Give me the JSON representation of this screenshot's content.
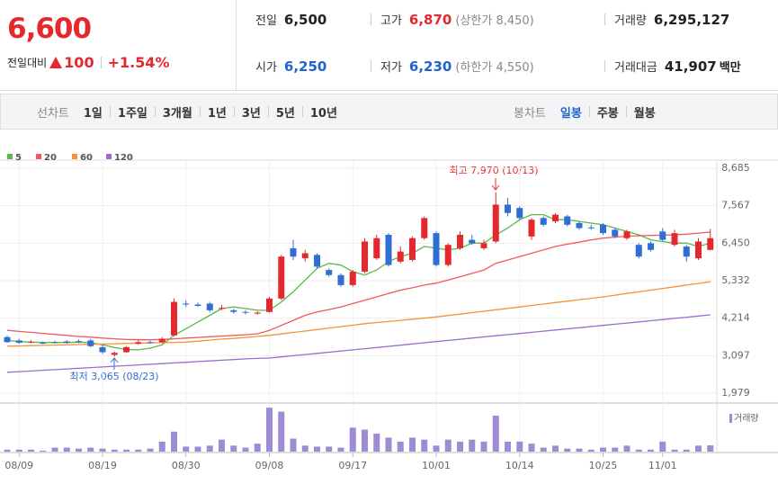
{
  "quote": {
    "price": "6,600",
    "change_label": "전일대비",
    "change": "100",
    "change_pct": "+1.54%"
  },
  "summary": [
    [
      {
        "label": "전일",
        "value": "6,500"
      },
      {
        "label": "고가",
        "value": "6,870",
        "note": "(상한가 8,450)",
        "tone": "red"
      },
      {
        "label": "거래량",
        "value": "6,295,127"
      }
    ],
    [
      {
        "label": "시가",
        "value": "6,250",
        "tone": "blue"
      },
      {
        "label": "저가",
        "value": "6,230",
        "note": "(하한가 4,550)",
        "tone": "blue"
      },
      {
        "label": "거래대금",
        "value": "41,907",
        "unit": "백만"
      }
    ]
  ],
  "tabs": [
    {
      "label": "선차트",
      "items": [
        "1일",
        "1주일",
        "3개월",
        "1년",
        "3년",
        "5년",
        "10년"
      ]
    },
    {
      "label": "봉차트",
      "items": [
        "일봉",
        "주봉",
        "월봉"
      ],
      "active": 0
    }
  ],
  "chart_data": {
    "type": "candlestick",
    "categories": [
      null,
      "08/09",
      null,
      null,
      null,
      null,
      null,
      null,
      "08/19",
      null,
      null,
      null,
      null,
      null,
      null,
      "08/30",
      null,
      null,
      null,
      null,
      null,
      null,
      "09/08",
      null,
      null,
      null,
      null,
      null,
      null,
      "09/17",
      null,
      null,
      null,
      null,
      null,
      null,
      "10/01",
      null,
      null,
      null,
      null,
      null,
      null,
      "10/14",
      null,
      null,
      null,
      null,
      null,
      null,
      "10/25",
      null,
      null,
      null,
      null,
      "11/01",
      null,
      null,
      null,
      null
    ],
    "open": [
      3650,
      3550,
      3500,
      3480,
      3500,
      3520,
      3530,
      3550,
      3350,
      3120,
      3200,
      3450,
      3500,
      3500,
      3700,
      4650,
      4620,
      4650,
      4500,
      4450,
      4400,
      4350,
      4400,
      4800,
      6300,
      6000,
      6100,
      5650,
      5500,
      5200,
      5600,
      6000,
      6700,
      5900,
      5950,
      6600,
      6750,
      5800,
      6300,
      6550,
      6300,
      6500,
      7600,
      7500,
      6650,
      7200,
      7100,
      7250,
      7050,
      6920,
      7000,
      6850,
      6600,
      6400,
      6450,
      6800,
      6400,
      6350,
      6000,
      6250
    ],
    "high": [
      3700,
      3600,
      3560,
      3520,
      3540,
      3560,
      3580,
      3600,
      3400,
      3220,
      3380,
      3550,
      3540,
      3650,
      4800,
      4750,
      4680,
      4700,
      4600,
      4500,
      4450,
      4420,
      4850,
      6100,
      6550,
      6250,
      6150,
      5700,
      5550,
      5650,
      6600,
      6700,
      6750,
      6350,
      6650,
      7250,
      6800,
      6450,
      6800,
      6700,
      6550,
      7970,
      7800,
      7550,
      7200,
      7250,
      7350,
      7300,
      7100,
      7000,
      7050,
      6900,
      6850,
      6450,
      6500,
      6900,
      6850,
      6400,
      6600,
      6870
    ],
    "low": [
      3480,
      3450,
      3470,
      3440,
      3460,
      3450,
      3470,
      3350,
      3150,
      3065,
      3180,
      3420,
      3450,
      3480,
      3680,
      4550,
      4550,
      4400,
      4450,
      4350,
      4330,
      4320,
      4380,
      4750,
      5950,
      5900,
      5700,
      5450,
      5150,
      5150,
      5550,
      5950,
      5750,
      5850,
      5900,
      6550,
      5750,
      5750,
      6250,
      6400,
      6250,
      6450,
      7250,
      7150,
      6550,
      6950,
      7050,
      6950,
      6850,
      6850,
      6700,
      6600,
      6550,
      6000,
      6200,
      6500,
      6350,
      5900,
      5950,
      6230
    ],
    "close": [
      3500,
      3480,
      3510,
      3470,
      3490,
      3480,
      3500,
      3380,
      3200,
      3180,
      3350,
      3500,
      3480,
      3600,
      4700,
      4620,
      4580,
      4450,
      4520,
      4400,
      4380,
      4380,
      4800,
      6050,
      6050,
      6150,
      5750,
      5500,
      5200,
      5600,
      6500,
      6600,
      5800,
      6200,
      6600,
      7200,
      5800,
      6400,
      6700,
      6450,
      6450,
      7600,
      7350,
      7200,
      7150,
      7000,
      7300,
      7000,
      6900,
      6900,
      6750,
      6650,
      6800,
      6050,
      6250,
      6550,
      6750,
      6050,
      6500,
      6600
    ],
    "up_color": "#e4282e",
    "down_color": "#2f6fd3",
    "moving_averages": [
      {
        "name": "5",
        "color": "#5cb84a",
        "values": [
          3550,
          3520,
          3500,
          3490,
          3490,
          3490,
          3500,
          3480,
          3420,
          3340,
          3280,
          3270,
          3320,
          3420,
          3700,
          3900,
          4100,
          4300,
          4500,
          4550,
          4500,
          4450,
          4450,
          4700,
          5000,
          5350,
          5700,
          5850,
          5800,
          5600,
          5500,
          5650,
          5900,
          6050,
          6150,
          6350,
          6300,
          6250,
          6300,
          6450,
          6450,
          6700,
          6900,
          7150,
          7300,
          7300,
          7150,
          7150,
          7100,
          7050,
          7000,
          6900,
          6800,
          6700,
          6550,
          6500,
          6450,
          6450,
          6350,
          6450
        ]
      },
      {
        "name": "20",
        "color": "#f05a5a",
        "values": [
          3850,
          3820,
          3790,
          3760,
          3730,
          3700,
          3670,
          3650,
          3620,
          3600,
          3580,
          3570,
          3570,
          3580,
          3600,
          3620,
          3640,
          3660,
          3680,
          3700,
          3720,
          3750,
          3850,
          4000,
          4150,
          4300,
          4400,
          4470,
          4550,
          4650,
          4750,
          4850,
          4950,
          5050,
          5120,
          5200,
          5260,
          5350,
          5450,
          5550,
          5650,
          5850,
          5950,
          6050,
          6150,
          6250,
          6350,
          6420,
          6480,
          6550,
          6600,
          6630,
          6660,
          6670,
          6680,
          6690,
          6700,
          6720,
          6750,
          6780
        ]
      },
      {
        "name": "60",
        "color": "#f39239",
        "values": [
          3380,
          3388,
          3396,
          3404,
          3412,
          3420,
          3428,
          3436,
          3444,
          3452,
          3460,
          3468,
          3476,
          3484,
          3492,
          3500,
          3530,
          3560,
          3590,
          3610,
          3640,
          3670,
          3700,
          3745,
          3790,
          3830,
          3875,
          3920,
          3960,
          4005,
          4050,
          4085,
          4115,
          4150,
          4185,
          4215,
          4250,
          4295,
          4335,
          4380,
          4420,
          4465,
          4505,
          4550,
          4595,
          4635,
          4680,
          4720,
          4765,
          4805,
          4850,
          4900,
          4950,
          5000,
          5050,
          5100,
          5150,
          5200,
          5250,
          5300
        ]
      },
      {
        "name": "120",
        "color": "#9b6ccf",
        "values": [
          2600,
          2620,
          2640,
          2660,
          2680,
          2700,
          2720,
          2740,
          2760,
          2780,
          2800,
          2820,
          2840,
          2860,
          2880,
          2900,
          2920,
          2940,
          2960,
          2980,
          3000,
          3015,
          3025,
          3060,
          3095,
          3130,
          3165,
          3200,
          3235,
          3270,
          3305,
          3340,
          3375,
          3410,
          3445,
          3480,
          3515,
          3550,
          3585,
          3620,
          3655,
          3690,
          3722,
          3757,
          3792,
          3826,
          3861,
          3896,
          3930,
          3965,
          4000,
          4035,
          4069,
          4104,
          4139,
          4173,
          4208,
          4243,
          4278,
          4312
        ]
      }
    ],
    "volume": {
      "name": "거래량",
      "color": "#9d8bd3",
      "ylim": [
        0,
        45000000
      ],
      "values": [
        2000000,
        2000000,
        2000000,
        1000000,
        4000000,
        4000000,
        3000000,
        4000000,
        3000000,
        2000000,
        2000000,
        2000000,
        3000000,
        10000000,
        20000000,
        5000000,
        5000000,
        6000000,
        12000000,
        6000000,
        4000000,
        8000000,
        44000000,
        40000000,
        13000000,
        6000000,
        5000000,
        5000000,
        4000000,
        24000000,
        22000000,
        18000000,
        14000000,
        10000000,
        14000000,
        12000000,
        6000000,
        12000000,
        10000000,
        12000000,
        10000000,
        36000000,
        10000000,
        10000000,
        8000000,
        4000000,
        6000000,
        3000000,
        3000000,
        2000000,
        4000000,
        4000000,
        6000000,
        2000000,
        2000000,
        10000000,
        2000000,
        2000000,
        6000000,
        6295127
      ]
    },
    "ylim": [
      1979,
      8685
    ],
    "yticks": [
      {
        "value": 8685,
        "label": "8,685"
      },
      {
        "value": 7567,
        "label": "7,567"
      },
      {
        "value": 6450,
        "label": "6,450"
      },
      {
        "value": 5332,
        "label": "5,332"
      },
      {
        "value": 4214,
        "label": "4,214"
      },
      {
        "value": 3097,
        "label": "3,097"
      },
      {
        "value": 1979,
        "label": "1,979"
      }
    ],
    "grid": true,
    "annotations": [
      {
        "text": "최고 7,970 (10/13)",
        "color": "#e4282e"
      },
      {
        "text": "최저 3,065 (08/23)",
        "color": "#2f6fd3"
      }
    ]
  }
}
